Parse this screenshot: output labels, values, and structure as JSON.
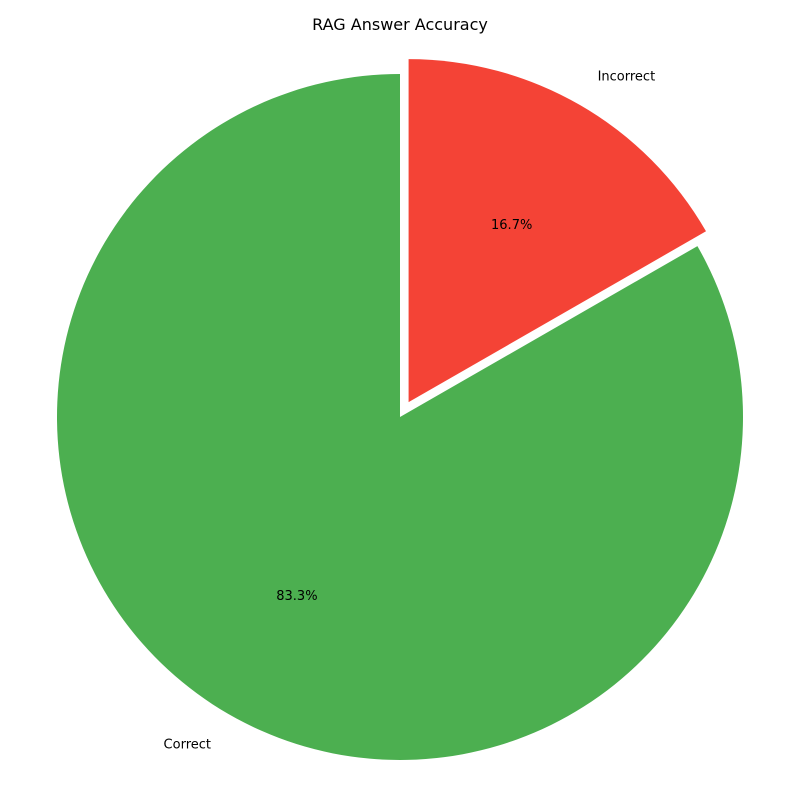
{
  "chart_data": {
    "type": "pie",
    "title": "RAG Answer Accuracy",
    "start_angle_deg": 90,
    "direction": "counterclockwise",
    "slices": [
      {
        "label": "Correct",
        "value": 83.3,
        "pct_label": "83.3%",
        "color": "#4caf50",
        "explode": 0
      },
      {
        "label": "Incorrect",
        "value": 16.7,
        "pct_label": "16.7%",
        "color": "#f44336",
        "explode": 0.05
      }
    ]
  }
}
